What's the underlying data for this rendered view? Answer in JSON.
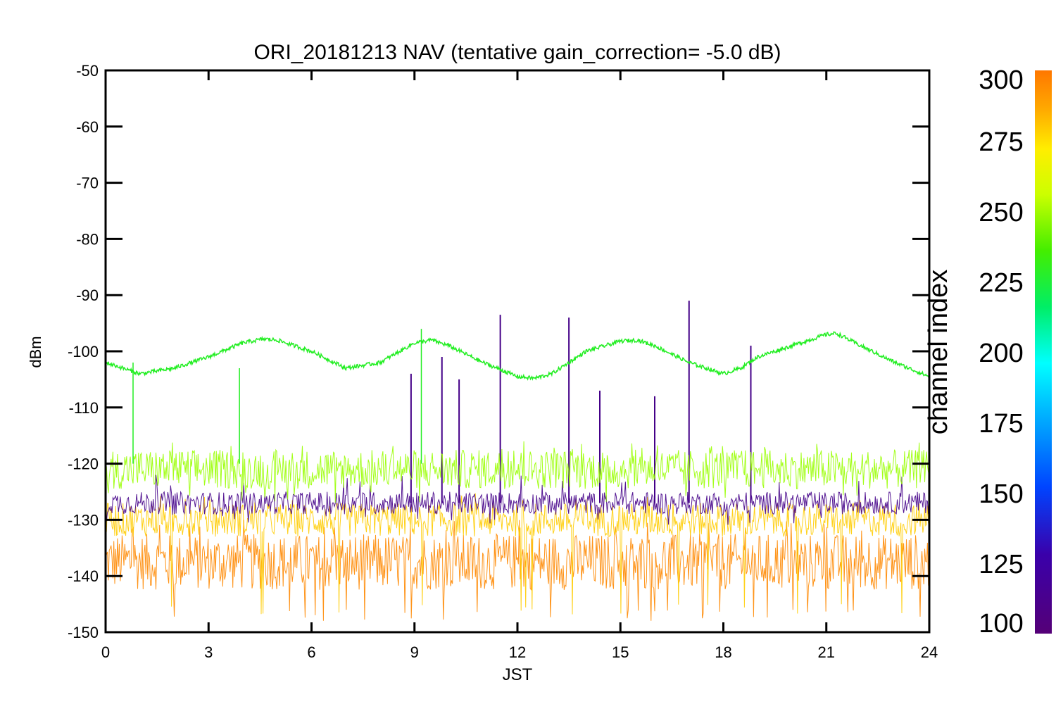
{
  "chart_data": {
    "type": "line",
    "title": "ORI_20181213 NAV (tentative gain_correction= -5.0 dB)",
    "xlabel": "JST",
    "ylabel": "dBm",
    "xlim": [
      0,
      24
    ],
    "ylim": [
      -150,
      -50
    ],
    "x_ticks": [
      "0",
      "3",
      "6",
      "9",
      "12",
      "15",
      "18",
      "21",
      "24"
    ],
    "y_ticks": [
      "-50",
      "-60",
      "-70",
      "-80",
      "-90",
      "-100",
      "-110",
      "-120",
      "-130",
      "-140",
      "-150"
    ],
    "colorbar": {
      "label": "channel index",
      "range": [
        100,
        300
      ],
      "ticks": [
        "100",
        "125",
        "150",
        "175",
        "200",
        "225",
        "250",
        "275",
        "300"
      ]
    },
    "series": [
      {
        "color": "#22ee22",
        "x": [
          0,
          1,
          2,
          3,
          4,
          4.6,
          5,
          6,
          7,
          8,
          9,
          9.5,
          10,
          11,
          12,
          12.5,
          13,
          14,
          15,
          15.5,
          16,
          17,
          18,
          18.5,
          19,
          20,
          21,
          21.3,
          22,
          23,
          24
        ],
        "y": [
          -102,
          -104,
          -103,
          -101,
          -98.5,
          -97.8,
          -98,
          -100,
          -103,
          -102,
          -98.5,
          -98,
          -99,
          -102,
          -104.5,
          -104.8,
          -104,
          -100,
          -98.2,
          -98,
          -99,
          -102,
          -104,
          -103,
          -101,
          -99,
          -97,
          -96.8,
          -99,
          -102,
          -104.5
        ],
        "spikes": [
          {
            "x": 0.8,
            "y": -102
          },
          {
            "x": 3.9,
            "y": -103
          },
          {
            "x": 9.2,
            "y": -96
          }
        ]
      },
      {
        "color": "#99ff00",
        "band_center": -121,
        "band_halfwidth": 3.5,
        "extremes": [
          -117,
          -126
        ]
      },
      {
        "color": "#ff8800",
        "band_center": -137.5,
        "band_halfwidth": 5,
        "extremes": [
          -131,
          -147
        ]
      },
      {
        "color": "#ffcc00",
        "band_center": -130,
        "band_halfwidth": 3,
        "extremes": [
          -126,
          -146
        ]
      },
      {
        "color": "#440088",
        "band_center": -127,
        "band_halfwidth": 2,
        "extremes": [
          -123,
          -130
        ],
        "spikes": [
          {
            "x": 8.9,
            "y": -104
          },
          {
            "x": 9.8,
            "y": -101
          },
          {
            "x": 10.3,
            "y": -105
          },
          {
            "x": 11.5,
            "y": -93.5
          },
          {
            "x": 13.5,
            "y": -94
          },
          {
            "x": 14.4,
            "y": -107
          },
          {
            "x": 16.0,
            "y": -108
          },
          {
            "x": 17.0,
            "y": -91
          },
          {
            "x": 18.8,
            "y": -99
          }
        ]
      }
    ]
  }
}
